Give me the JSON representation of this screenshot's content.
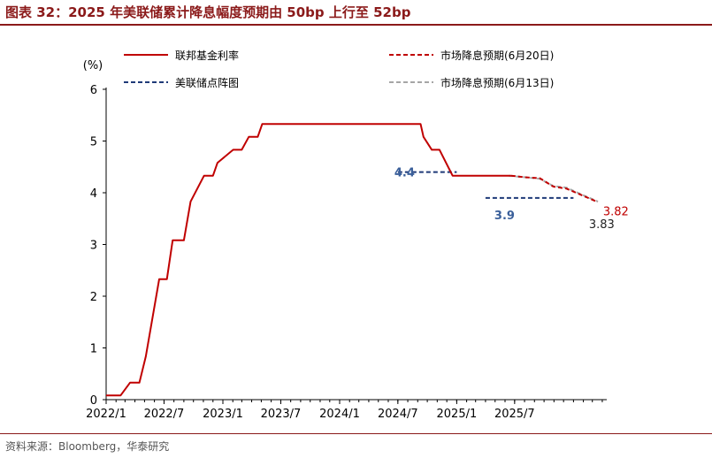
{
  "title": "图表 32：2025 年美联储累计降息幅度预期由 50bp 上行至 52bp",
  "source": "资料来源：Bloomberg，华泰研究",
  "chart_data": {
    "type": "line",
    "ylabel": "(%)",
    "ylim": [
      0,
      6
    ],
    "yticks": [
      "0",
      "1",
      "2",
      "3",
      "4",
      "5",
      "6"
    ],
    "xticks": [
      "2022/1",
      "2022/7",
      "2023/1",
      "2023/7",
      "2024/1",
      "2024/7",
      "2025/1",
      "2025/7"
    ],
    "legend_position": "top",
    "series": [
      {
        "name": "联邦基金利率",
        "color": "#c00000",
        "style": "solid",
        "points": [
          [
            "2022-01-01",
            0.08
          ],
          [
            "2022-02-15",
            0.08
          ],
          [
            "2022-03-17",
            0.33
          ],
          [
            "2022-04-15",
            0.33
          ],
          [
            "2022-05-05",
            0.83
          ],
          [
            "2022-06-16",
            2.33
          ],
          [
            "2022-07-10",
            2.33
          ],
          [
            "2022-07-28",
            3.08
          ],
          [
            "2022-09-01",
            3.08
          ],
          [
            "2022-09-22",
            3.83
          ],
          [
            "2022-11-03",
            4.33
          ],
          [
            "2022-12-01",
            4.33
          ],
          [
            "2022-12-15",
            4.58
          ],
          [
            "2023-02-02",
            4.83
          ],
          [
            "2023-03-01",
            4.83
          ],
          [
            "2023-03-23",
            5.08
          ],
          [
            "2023-04-20",
            5.08
          ],
          [
            "2023-05-04",
            5.33
          ],
          [
            "2024-09-10",
            5.33
          ],
          [
            "2024-09-19",
            5.08
          ],
          [
            "2024-10-15",
            4.83
          ],
          [
            "2024-11-08",
            4.83
          ],
          [
            "2024-12-19",
            4.33
          ],
          [
            "2025-06-20",
            4.33
          ]
        ]
      },
      {
        "name": "市场降息预期(6月20日)",
        "color": "#c00000",
        "style": "dashed",
        "points": [
          [
            "2025-06-20",
            4.33
          ],
          [
            "2025-07-31",
            4.3
          ],
          [
            "2025-09-18",
            4.28
          ],
          [
            "2025-10-30",
            4.12
          ],
          [
            "2025-12-10",
            4.08
          ],
          [
            "2026-01-28",
            3.95
          ],
          [
            "2026-03-18",
            3.82
          ]
        ]
      },
      {
        "name": "美联储点阵图",
        "color": "#1f3a78",
        "style": "dashed",
        "segments": [
          {
            "from": "2024-07-01",
            "to": "2025-01-01",
            "value": 4.4
          },
          {
            "from": "2025-04-01",
            "to": "2026-01-01",
            "value": 3.9
          }
        ]
      },
      {
        "name": "市场降息预期(6月13日)",
        "color": "#a6a6a6",
        "style": "dashed",
        "points": [
          [
            "2025-06-13",
            4.33
          ],
          [
            "2025-07-31",
            4.3
          ],
          [
            "2025-09-18",
            4.27
          ],
          [
            "2025-10-30",
            4.13
          ],
          [
            "2025-12-10",
            4.1
          ],
          [
            "2026-01-28",
            3.96
          ],
          [
            "2026-03-18",
            3.83
          ]
        ]
      }
    ],
    "annotations": [
      {
        "text": "4.4",
        "color": "#3a5f9a",
        "date": "2024-06-20",
        "value": 4.4
      },
      {
        "text": "3.9",
        "color": "#3a5f9a",
        "date": "2025-06-05",
        "value": 3.9
      },
      {
        "text": "3.82",
        "color": "#c00000",
        "date": "2026-03-18",
        "value": 3.82
      },
      {
        "text": "3.83",
        "color": "#222222",
        "date": "2026-03-18",
        "value": 3.83
      }
    ]
  }
}
